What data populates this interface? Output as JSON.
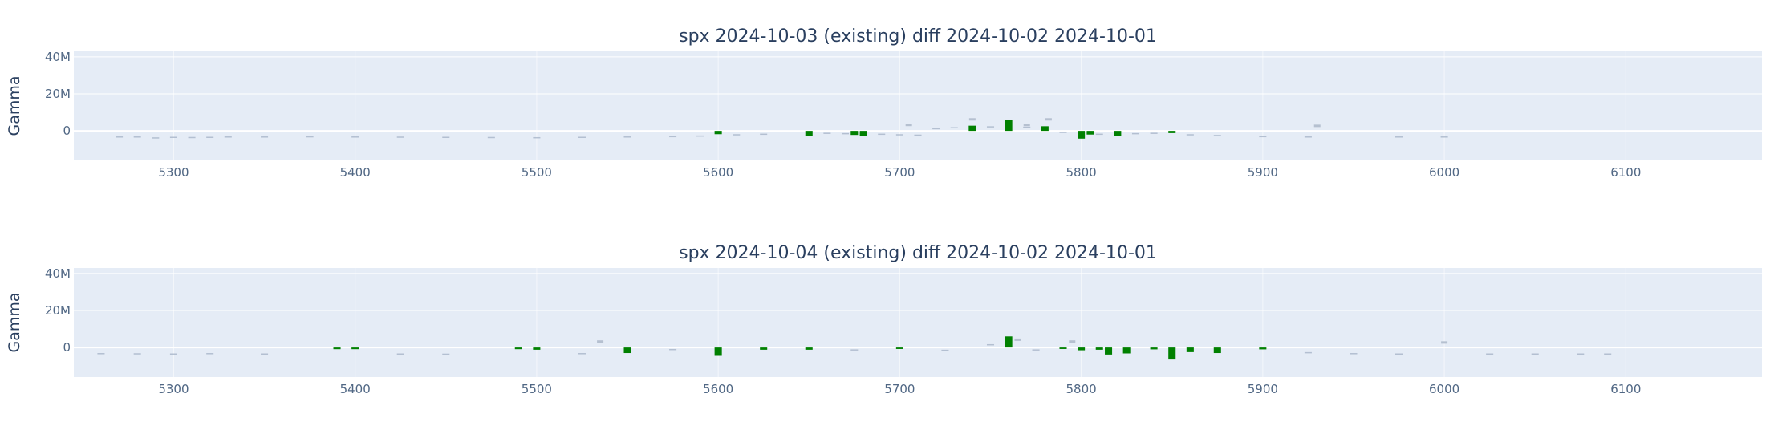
{
  "chart_data": [
    {
      "type": "bar",
      "title": "spx 2024-10-03 (existing) diff 2024-10-02 2024-10-01",
      "xlabel": "",
      "ylabel": "Gamma",
      "xlim": [
        5245,
        6175
      ],
      "ylim": [
        -16000000,
        43000000
      ],
      "x_ticks": [
        5300,
        5400,
        5500,
        5600,
        5700,
        5800,
        5900,
        6000,
        6100
      ],
      "y_ticks": [
        {
          "value": 0,
          "label": "0"
        },
        {
          "value": 20000000,
          "label": "20M"
        },
        {
          "value": 40000000,
          "label": "40M"
        }
      ],
      "grid": true,
      "legend": "none",
      "colors": {
        "plot_bg": "#e5ecf6",
        "positive": "#008000",
        "small": "#a6b4c8"
      },
      "points": [
        {
          "x": 5270,
          "base": -3000000,
          "delta": -200000
        },
        {
          "x": 5280,
          "base": -3000000,
          "delta": -300000
        },
        {
          "x": 5290,
          "base": -3500000,
          "delta": -400000
        },
        {
          "x": 5300,
          "base": -3200000,
          "delta": -200000
        },
        {
          "x": 5310,
          "base": -3300000,
          "delta": -300000
        },
        {
          "x": 5320,
          "base": -3200000,
          "delta": -300000
        },
        {
          "x": 5330,
          "base": -3000000,
          "delta": -200000
        },
        {
          "x": 5350,
          "base": -3000000,
          "delta": -200000
        },
        {
          "x": 5375,
          "base": -2900000,
          "delta": -200000
        },
        {
          "x": 5400,
          "base": -3000000,
          "delta": -200000
        },
        {
          "x": 5425,
          "base": -3100000,
          "delta": -300000
        },
        {
          "x": 5450,
          "base": -3200000,
          "delta": -300000
        },
        {
          "x": 5475,
          "base": -3300000,
          "delta": -300000
        },
        {
          "x": 5500,
          "base": -3400000,
          "delta": -300000
        },
        {
          "x": 5525,
          "base": -3200000,
          "delta": -300000
        },
        {
          "x": 5550,
          "base": -3000000,
          "delta": -300000
        },
        {
          "x": 5575,
          "base": -2800000,
          "delta": -300000
        },
        {
          "x": 5590,
          "base": -2500000,
          "delta": -300000
        },
        {
          "x": 5600,
          "base": 0,
          "delta": -1800000
        },
        {
          "x": 5610,
          "base": -1800000,
          "delta": -500000
        },
        {
          "x": 5625,
          "base": -1500000,
          "delta": -400000
        },
        {
          "x": 5650,
          "base": 0,
          "delta": -2800000
        },
        {
          "x": 5660,
          "base": -1000000,
          "delta": -500000
        },
        {
          "x": 5670,
          "base": -1200000,
          "delta": -600000
        },
        {
          "x": 5675,
          "base": 0,
          "delta": -2200000
        },
        {
          "x": 5680,
          "base": 0,
          "delta": -2600000
        },
        {
          "x": 5690,
          "base": -1500000,
          "delta": -500000
        },
        {
          "x": 5700,
          "base": -1800000,
          "delta": -500000
        },
        {
          "x": 5710,
          "base": -2000000,
          "delta": -300000
        },
        {
          "x": 5720,
          "base": 1000000,
          "delta": 500000
        },
        {
          "x": 5730,
          "base": 1500000,
          "delta": 500000
        },
        {
          "x": 5740,
          "base": 0,
          "delta": 2800000
        },
        {
          "x": 5750,
          "base": 2000000,
          "delta": 500000
        },
        {
          "x": 5760,
          "base": 0,
          "delta": 6000000
        },
        {
          "x": 5770,
          "base": 2000000,
          "delta": 300000
        },
        {
          "x": 5780,
          "base": 0,
          "delta": 2500000
        },
        {
          "x": 5790,
          "base": -500000,
          "delta": -400000
        },
        {
          "x": 5800,
          "base": 0,
          "delta": -4200000
        },
        {
          "x": 5805,
          "base": 0,
          "delta": -2000000
        },
        {
          "x": 5810,
          "base": -1500000,
          "delta": -500000
        },
        {
          "x": 5820,
          "base": 0,
          "delta": -2800000
        },
        {
          "x": 5830,
          "base": -1200000,
          "delta": -400000
        },
        {
          "x": 5840,
          "base": -1000000,
          "delta": -300000
        },
        {
          "x": 5850,
          "base": 0,
          "delta": -1200000
        },
        {
          "x": 5860,
          "base": -1800000,
          "delta": -400000
        },
        {
          "x": 5875,
          "base": -2200000,
          "delta": -400000
        },
        {
          "x": 5900,
          "base": -2800000,
          "delta": -400000
        },
        {
          "x": 5925,
          "base": -3000000,
          "delta": -400000
        },
        {
          "x": 5975,
          "base": -3000000,
          "delta": -200000
        },
        {
          "x": 6000,
          "base": -3000000,
          "delta": -200000
        }
      ],
      "annotations": [
        {
          "x": 5705,
          "y": 3000000
        },
        {
          "x": 5740,
          "y": 6000000
        },
        {
          "x": 5770,
          "y": 3000000
        },
        {
          "x": 5782,
          "y": 6000000
        },
        {
          "x": 5930,
          "y": 2500000
        }
      ]
    },
    {
      "type": "bar",
      "title": "spx 2024-10-04 (existing) diff 2024-10-02 2024-10-01",
      "xlabel": "",
      "ylabel": "Gamma",
      "xlim": [
        5245,
        6175
      ],
      "ylim": [
        -16000000,
        43000000
      ],
      "x_ticks": [
        5300,
        5400,
        5500,
        5600,
        5700,
        5800,
        5900,
        6000,
        6100
      ],
      "y_ticks": [
        {
          "value": 0,
          "label": "0"
        },
        {
          "value": 20000000,
          "label": "20M"
        },
        {
          "value": 40000000,
          "label": "40M"
        }
      ],
      "grid": true,
      "legend": "none",
      "colors": {
        "plot_bg": "#e5ecf6",
        "positive": "#008000",
        "small": "#a6b4c8"
      },
      "points": [
        {
          "x": 5260,
          "base": -3000000,
          "delta": -200000
        },
        {
          "x": 5280,
          "base": -3100000,
          "delta": -300000
        },
        {
          "x": 5300,
          "base": -3200000,
          "delta": -300000
        },
        {
          "x": 5320,
          "base": -3000000,
          "delta": -300000
        },
        {
          "x": 5350,
          "base": -3200000,
          "delta": -300000
        },
        {
          "x": 5390,
          "base": 0,
          "delta": -900000
        },
        {
          "x": 5400,
          "base": 0,
          "delta": -900000
        },
        {
          "x": 5425,
          "base": -3200000,
          "delta": -300000
        },
        {
          "x": 5450,
          "base": -3300000,
          "delta": -300000
        },
        {
          "x": 5490,
          "base": 0,
          "delta": -900000
        },
        {
          "x": 5500,
          "base": 0,
          "delta": -1200000
        },
        {
          "x": 5525,
          "base": -3000000,
          "delta": -300000
        },
        {
          "x": 5550,
          "base": 0,
          "delta": -3000000
        },
        {
          "x": 5575,
          "base": -800000,
          "delta": -300000
        },
        {
          "x": 5600,
          "base": 0,
          "delta": -4500000
        },
        {
          "x": 5625,
          "base": 0,
          "delta": -1200000
        },
        {
          "x": 5650,
          "base": 0,
          "delta": -1200000
        },
        {
          "x": 5675,
          "base": -1000000,
          "delta": -300000
        },
        {
          "x": 5700,
          "base": 0,
          "delta": -800000
        },
        {
          "x": 5725,
          "base": -1200000,
          "delta": -300000
        },
        {
          "x": 5750,
          "base": 1500000,
          "delta": 300000
        },
        {
          "x": 5760,
          "base": 0,
          "delta": 6000000
        },
        {
          "x": 5775,
          "base": -1000000,
          "delta": -300000
        },
        {
          "x": 5790,
          "base": 0,
          "delta": -800000
        },
        {
          "x": 5800,
          "base": 0,
          "delta": -1500000
        },
        {
          "x": 5810,
          "base": 0,
          "delta": -1200000
        },
        {
          "x": 5815,
          "base": 0,
          "delta": -3800000
        },
        {
          "x": 5825,
          "base": 0,
          "delta": -3200000
        },
        {
          "x": 5840,
          "base": 0,
          "delta": -1000000
        },
        {
          "x": 5850,
          "base": 0,
          "delta": -6500000
        },
        {
          "x": 5860,
          "base": 0,
          "delta": -2500000
        },
        {
          "x": 5875,
          "base": 0,
          "delta": -3000000
        },
        {
          "x": 5900,
          "base": 0,
          "delta": -1000000
        },
        {
          "x": 5925,
          "base": -2500000,
          "delta": -300000
        },
        {
          "x": 5950,
          "base": -3000000,
          "delta": -300000
        },
        {
          "x": 5975,
          "base": -3200000,
          "delta": -300000
        },
        {
          "x": 6025,
          "base": -3200000,
          "delta": -300000
        },
        {
          "x": 6050,
          "base": -3200000,
          "delta": -300000
        },
        {
          "x": 6075,
          "base": -3200000,
          "delta": -300000
        },
        {
          "x": 6090,
          "base": -3200000,
          "delta": -300000
        }
      ],
      "annotations": [
        {
          "x": 5535,
          "y": 3000000
        },
        {
          "x": 5765,
          "y": 4000000
        },
        {
          "x": 5795,
          "y": 3000000
        },
        {
          "x": 6000,
          "y": 2500000
        }
      ]
    }
  ]
}
